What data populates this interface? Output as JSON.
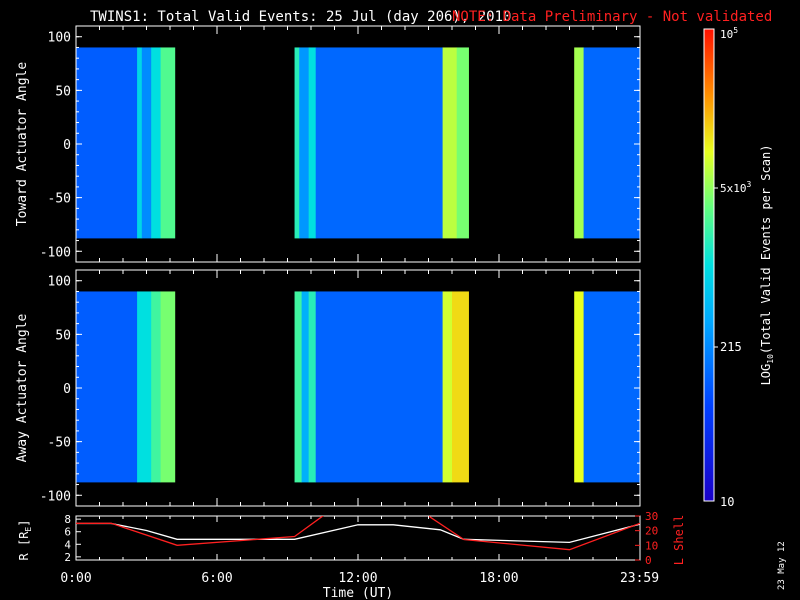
{
  "title": "TWINS1: Total Valid Events: 25 Jul (day 206), 2010",
  "note": "NOTE: Data Preliminary - Not validated",
  "colors": {
    "background": "#000000",
    "axes": "#ffffff",
    "note": "#ff2020",
    "lshell": "#ff2020",
    "radius": "#ffffff"
  },
  "colorbar": {
    "label": "LOG10(Total Valid Events per Scan)",
    "tick_labels": [
      "10",
      "215",
      "5x10^3",
      "10^5"
    ]
  },
  "panels": [
    {
      "ylabel": "Toward Actuator Angle",
      "yticks": [
        "100",
        "50",
        "0",
        "-50",
        "-100"
      ]
    },
    {
      "ylabel": "Away Actuator Angle",
      "yticks": [
        "100",
        "50",
        "0",
        "-50",
        "-100"
      ]
    }
  ],
  "orbit_panel": {
    "left_label": "R [RE]",
    "right_label": "L Shell",
    "left_ticks": [
      "8",
      "6",
      "4",
      "2"
    ],
    "right_ticks": [
      "30",
      "20",
      "10",
      "0"
    ]
  },
  "xaxis": {
    "label": "Time (UT)",
    "tick_labels": [
      "0:00",
      "6:00",
      "12:00",
      "18:00",
      "23:59"
    ]
  },
  "date_stamp": "23 May 12",
  "chart_data": [
    {
      "type": "heatmap",
      "title": "TWINS1: Total Valid Events: 25 Jul (day 206), 2010",
      "xlabel": "Time (UT)",
      "ylabel": "Toward Actuator Angle",
      "xlim": [
        0,
        24
      ],
      "ylim": [
        -110,
        110
      ],
      "data_ylim": [
        -88,
        90
      ],
      "color_scale": "log",
      "zlim": [
        10,
        100000
      ],
      "segments": [
        {
          "start": 0.0,
          "end": 2.6,
          "level": 0.25
        },
        {
          "start": 2.6,
          "end": 2.8,
          "level": 0.48
        },
        {
          "start": 2.8,
          "end": 3.2,
          "level": 0.33
        },
        {
          "start": 3.2,
          "end": 3.6,
          "level": 0.5
        },
        {
          "start": 3.6,
          "end": 4.2,
          "level": 0.6
        },
        {
          "start": 9.3,
          "end": 9.5,
          "level": 0.55
        },
        {
          "start": 9.5,
          "end": 9.9,
          "level": 0.35
        },
        {
          "start": 9.9,
          "end": 10.2,
          "level": 0.5
        },
        {
          "start": 10.2,
          "end": 15.6,
          "level": 0.27
        },
        {
          "start": 15.6,
          "end": 16.2,
          "level": 0.7
        },
        {
          "start": 16.2,
          "end": 16.7,
          "level": 0.64
        },
        {
          "start": 21.2,
          "end": 21.6,
          "level": 0.68
        },
        {
          "start": 21.6,
          "end": 24.0,
          "level": 0.27
        }
      ]
    },
    {
      "type": "heatmap",
      "xlabel": "Time (UT)",
      "ylabel": "Away Actuator Angle",
      "xlim": [
        0,
        24
      ],
      "ylim": [
        -110,
        110
      ],
      "data_ylim": [
        -88,
        90
      ],
      "color_scale": "log",
      "zlim": [
        10,
        100000
      ],
      "segments": [
        {
          "start": 0.0,
          "end": 2.6,
          "level": 0.25
        },
        {
          "start": 2.6,
          "end": 3.2,
          "level": 0.5
        },
        {
          "start": 3.2,
          "end": 3.6,
          "level": 0.58
        },
        {
          "start": 3.6,
          "end": 4.2,
          "level": 0.64
        },
        {
          "start": 9.3,
          "end": 9.6,
          "level": 0.58
        },
        {
          "start": 9.6,
          "end": 9.9,
          "level": 0.4
        },
        {
          "start": 9.9,
          "end": 10.2,
          "level": 0.55
        },
        {
          "start": 10.2,
          "end": 15.6,
          "level": 0.26
        },
        {
          "start": 15.6,
          "end": 16.0,
          "level": 0.72
        },
        {
          "start": 16.0,
          "end": 16.7,
          "level": 0.78
        },
        {
          "start": 21.2,
          "end": 21.6,
          "level": 0.74
        },
        {
          "start": 21.6,
          "end": 24.0,
          "level": 0.27
        }
      ]
    },
    {
      "type": "line",
      "xlabel": "Time (UT)",
      "xlim": [
        0,
        24
      ],
      "series": [
        {
          "name": "R [RE]",
          "axis": "left",
          "ylim": [
            1.5,
            8.5
          ],
          "x": [
            0,
            1.5,
            3,
            4.3,
            9.3,
            12,
            13.5,
            15.5,
            16.5,
            21,
            24
          ],
          "y": [
            7.3,
            7.3,
            6.2,
            4.8,
            4.8,
            7.1,
            7.1,
            6.3,
            4.8,
            4.3,
            7.2
          ]
        },
        {
          "name": "L Shell",
          "axis": "right",
          "ylim": [
            0,
            30
          ],
          "x": [
            0,
            1.5,
            4.3,
            9.3,
            10.5,
            11.0,
            14.3,
            15.0,
            16.5,
            21.0,
            24.0
          ],
          "y": [
            25,
            25,
            10,
            16,
            30,
            40,
            40,
            30,
            14,
            7,
            25
          ]
        }
      ]
    }
  ]
}
